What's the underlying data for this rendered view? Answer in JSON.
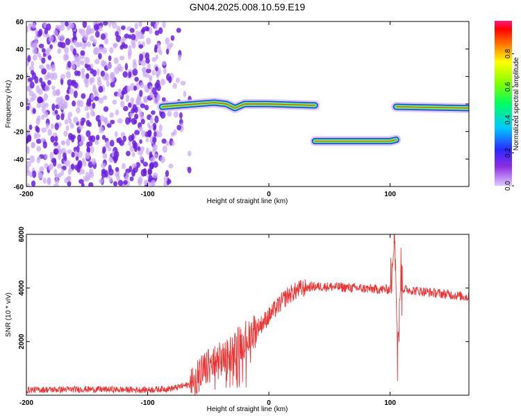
{
  "title": "GN04.2025.008.10.59.E19",
  "colors": {
    "signal": "#ee3333",
    "scatter": "#6a1ee0",
    "background": "#ffffff"
  },
  "chart_data": [
    {
      "type": "heatmap",
      "xlabel": "Height of straight line (km)",
      "ylabel": "Frequency (Hz)",
      "xlim": [
        -200,
        165
      ],
      "ylim": [
        -60,
        60
      ],
      "xticks": [
        -200,
        -100,
        0,
        100
      ],
      "yticks": [
        60,
        40,
        20,
        0,
        -20,
        -40,
        -60
      ],
      "colorbar": {
        "label": "Normalized spectral amplitude",
        "range": [
          0,
          1
        ],
        "ticks": [
          0.0,
          0.2,
          0.4,
          0.6,
          0.8
        ],
        "tick_labels": [
          "0.0",
          "0.2",
          "0.4",
          "0.6",
          "0.8"
        ]
      },
      "noise_region": {
        "x_from": -200,
        "x_to": -65
      },
      "tracks": [
        {
          "x": [
            -88,
            -60,
            -45,
            -35,
            -28,
            -20,
            0,
            38
          ],
          "y": [
            -2,
            0,
            1,
            0,
            -3,
            0,
            0,
            -1
          ]
        },
        {
          "x": [
            38,
            100,
            105
          ],
          "y": [
            -27,
            -27,
            -26
          ]
        },
        {
          "x": [
            105,
            165
          ],
          "y": [
            -2,
            -3
          ]
        }
      ]
    },
    {
      "type": "line",
      "xlabel": "Height of straight line (km)",
      "ylabel": "SNR (10 * v/v)",
      "xlim": [
        -200,
        165
      ],
      "ylim": [
        0,
        6000
      ],
      "xticks": [
        -200,
        -100,
        0,
        100
      ],
      "yticks": [
        2000,
        4000,
        6000
      ],
      "series": [
        {
          "x": [
            -200,
            -150,
            -100,
            -80,
            -65,
            -55,
            -45,
            -35,
            -25,
            -15,
            -5,
            5,
            15,
            25,
            35,
            50,
            70,
            90,
            100,
            104,
            106,
            108,
            112,
            130,
            150,
            165
          ],
          "y": [
            200,
            220,
            200,
            250,
            400,
            900,
            1200,
            1400,
            1900,
            2300,
            2700,
            3200,
            3700,
            3950,
            4050,
            4050,
            4000,
            3950,
            3950,
            5800,
            1900,
            4000,
            3950,
            3850,
            3750,
            3650
          ]
        }
      ]
    }
  ]
}
